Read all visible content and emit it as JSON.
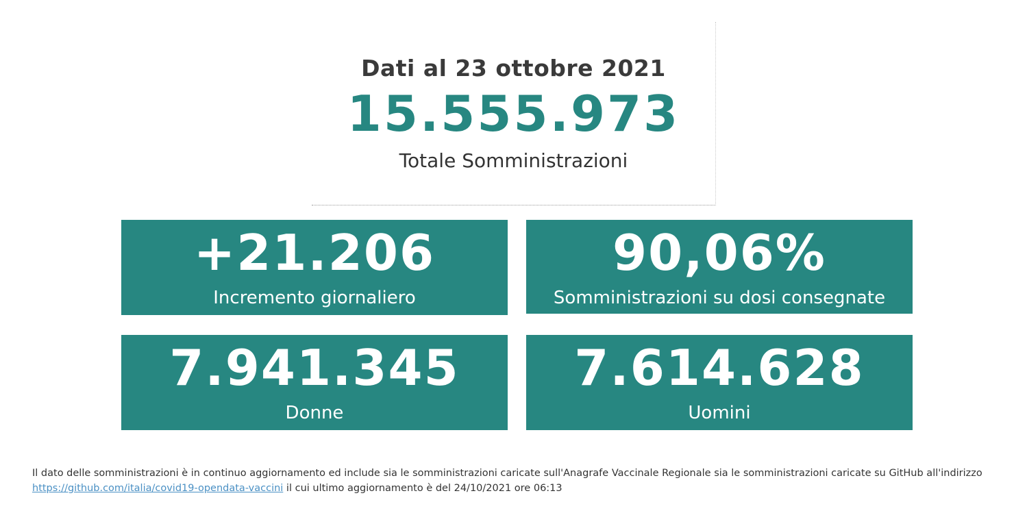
{
  "colors": {
    "accent": "#278781",
    "card_bg": "#278781",
    "text": "#333333",
    "link": "#4a90c4"
  },
  "summary": {
    "date_title": "Dati al 23 ottobre 2021",
    "total_value": "15.555.973",
    "total_label": "Totale Somministrazioni"
  },
  "cards": [
    {
      "value": "+21.206",
      "label": "Incremento giornaliero"
    },
    {
      "value": "90,06%",
      "label": "Somministrazioni su dosi consegnate"
    },
    {
      "value": "7.941.345",
      "label": "Donne"
    },
    {
      "value": "7.614.628",
      "label": "Uomini"
    }
  ],
  "footnote": {
    "text_before": "Il dato delle somministrazioni è in continuo aggiornamento ed include sia le somministrazioni caricate sull'Anagrafe Vaccinale Regionale sia le somministrazioni caricate su GitHub all'indirizzo ",
    "link_text": "https://github.com/italia/covid19-opendata-vaccini",
    "text_after": " il cui ultimo aggiornamento è del 24/10/2021 ore 06:13"
  }
}
